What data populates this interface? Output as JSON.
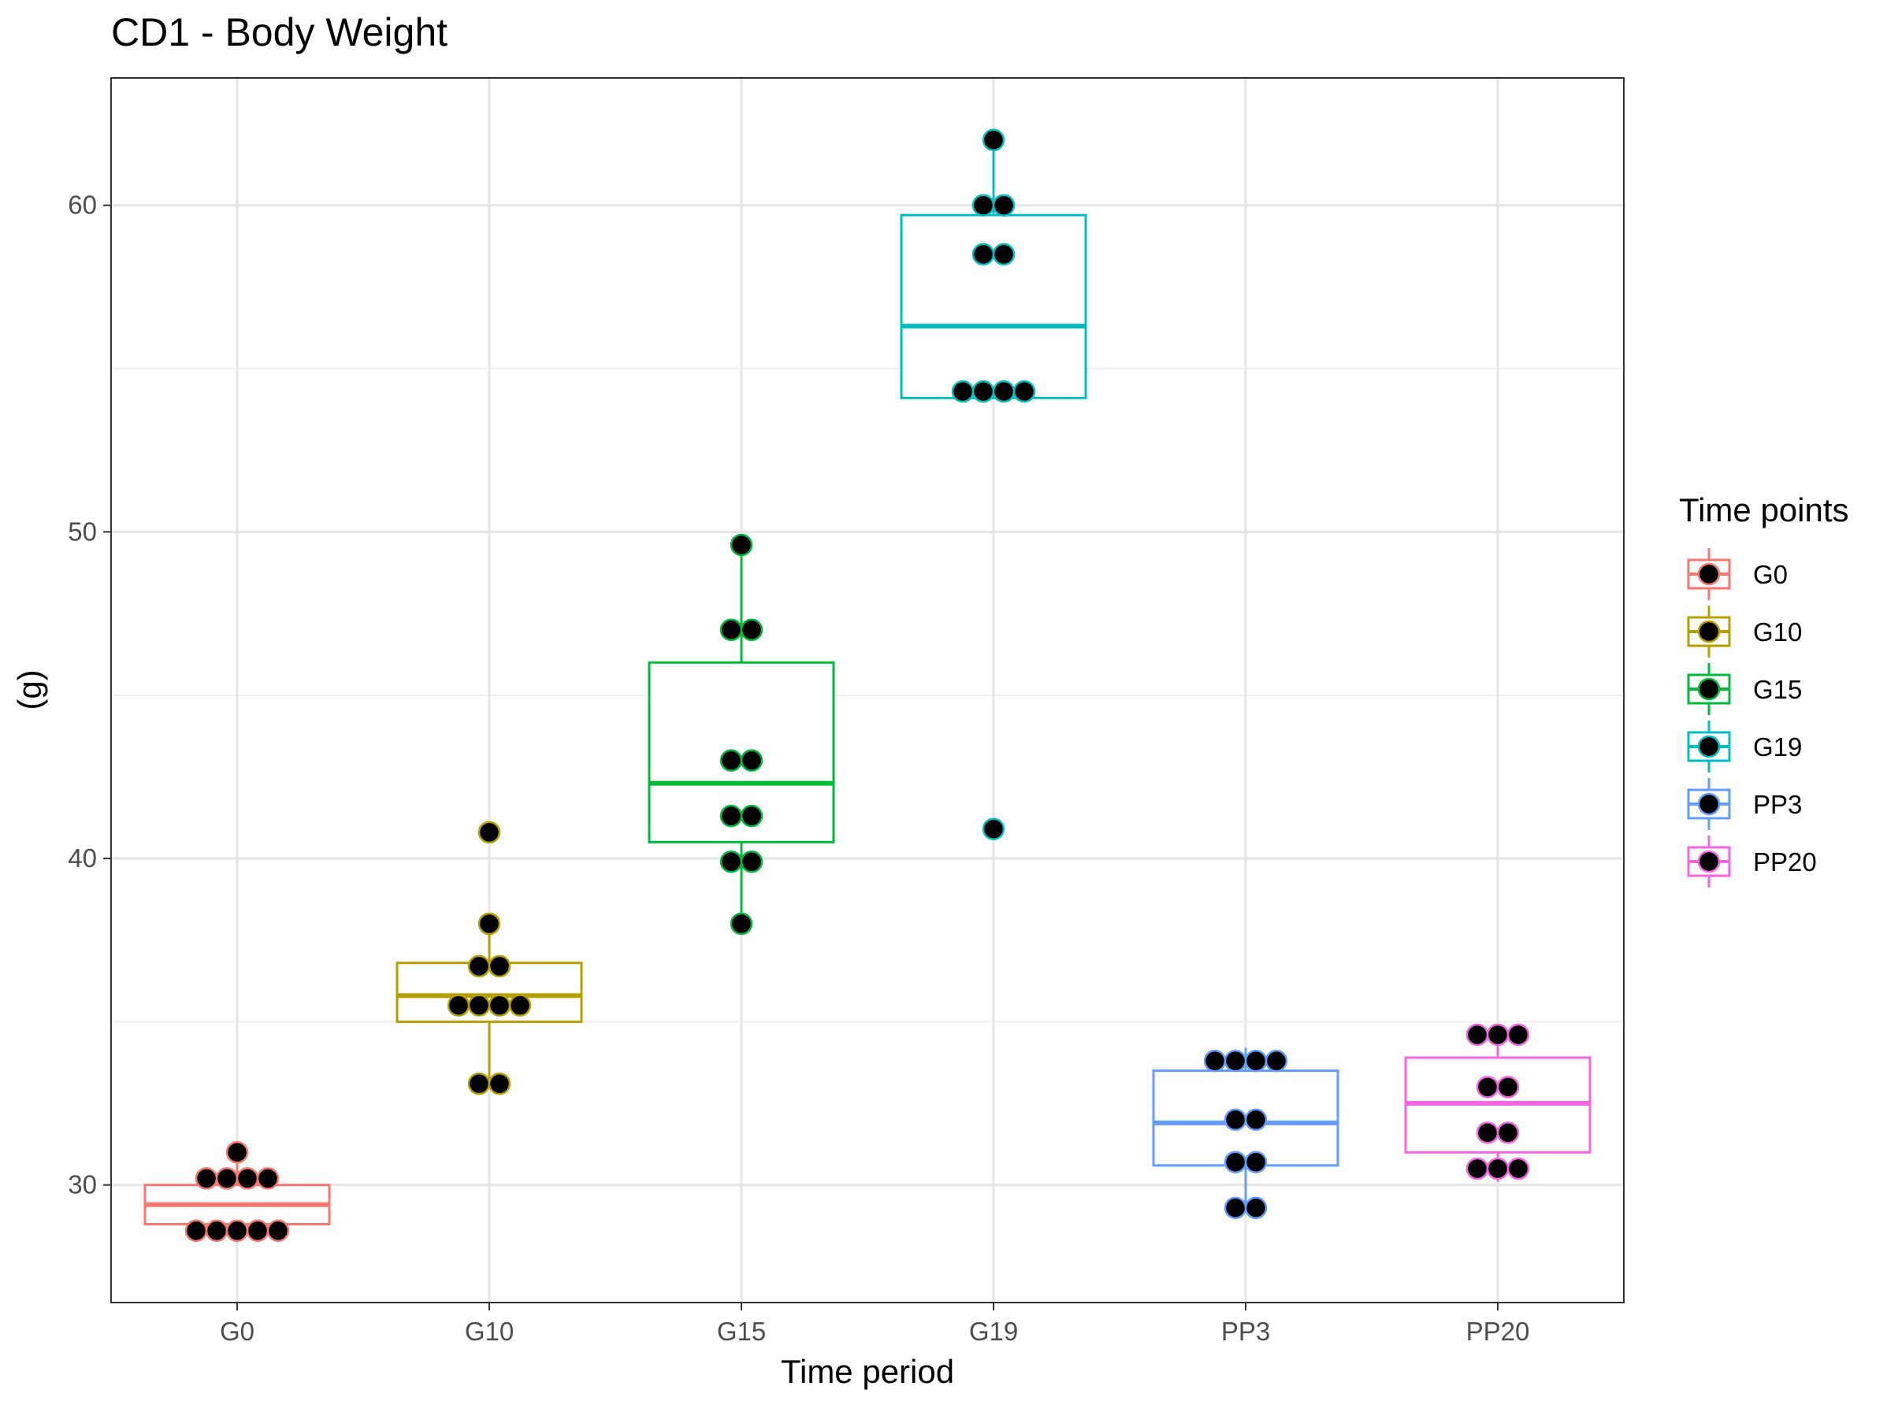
{
  "chart_data": {
    "type": "box",
    "title": "CD1 - Body Weight",
    "xlabel": "Time period",
    "ylabel": "(g)",
    "ylim": [
      26.4,
      63.9
    ],
    "y_ticks": [
      30,
      40,
      50,
      60
    ],
    "grid": true,
    "legend": {
      "title": "Time points",
      "position": "right"
    },
    "categories": [
      "G0",
      "G10",
      "G15",
      "G19",
      "PP3",
      "PP20"
    ],
    "colors": [
      "#F8766D",
      "#B79F00",
      "#00BA38",
      "#00BFC4",
      "#619CFF",
      "#F564E3"
    ],
    "series": [
      {
        "name": "G0",
        "box": {
          "q1": 28.8,
          "median": 29.4,
          "q3": 30.0,
          "whisker_low": 28.6,
          "whisker_high": 31.0
        },
        "points": [
          28.6,
          28.6,
          28.6,
          28.6,
          28.6,
          30.2,
          30.2,
          30.2,
          30.2,
          31.0
        ]
      },
      {
        "name": "G10",
        "box": {
          "q1": 35.0,
          "median": 35.8,
          "q3": 36.8,
          "whisker_low": 33.1,
          "whisker_high": 38.0
        },
        "points": [
          33.1,
          33.1,
          35.5,
          35.5,
          35.5,
          35.5,
          36.7,
          36.7,
          38.0,
          40.8
        ]
      },
      {
        "name": "G15",
        "box": {
          "q1": 40.5,
          "median": 42.3,
          "q3": 46.0,
          "whisker_low": 38.0,
          "whisker_high": 49.6
        },
        "points": [
          38.0,
          39.9,
          39.9,
          41.3,
          41.3,
          43.0,
          43.0,
          47.0,
          47.0,
          49.6
        ]
      },
      {
        "name": "G19",
        "box": {
          "q1": 54.1,
          "median": 56.3,
          "q3": 59.7,
          "whisker_low": 54.1,
          "whisker_high": 62.0
        },
        "points": [
          40.9,
          54.3,
          54.3,
          54.3,
          54.3,
          58.5,
          58.5,
          60.0,
          60.0,
          62.0
        ]
      },
      {
        "name": "PP3",
        "box": {
          "q1": 30.6,
          "median": 31.9,
          "q3": 33.5,
          "whisker_low": 29.3,
          "whisker_high": 34.2
        },
        "points": [
          29.3,
          29.3,
          30.7,
          30.7,
          32.0,
          32.0,
          33.8,
          33.8,
          33.8,
          33.8
        ]
      },
      {
        "name": "PP20",
        "box": {
          "q1": 31.0,
          "median": 32.5,
          "q3": 33.9,
          "whisker_low": 30.1,
          "whisker_high": 34.6
        },
        "points": [
          30.5,
          30.5,
          30.5,
          31.6,
          31.6,
          33.0,
          33.0,
          34.6,
          34.6,
          34.6
        ]
      }
    ]
  }
}
